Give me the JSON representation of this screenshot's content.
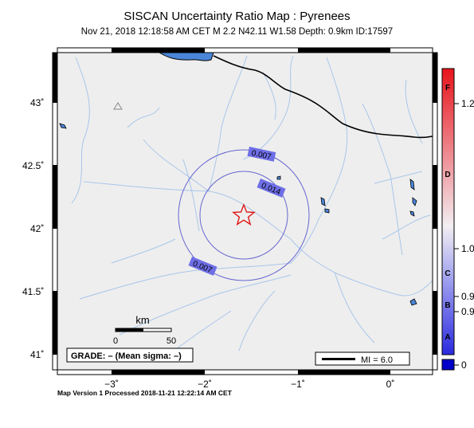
{
  "header": {
    "title": "SISCAN Uncertainty Ratio Map : Pyrenees",
    "event": "Nov 21, 2018 12:18:58 AM CET   M 2.2   N42.11 W1.58   Depth: 0.9km   ID:17597"
  },
  "map": {
    "lat_ticks": [
      {
        "label": "43˚",
        "value": 43.0
      },
      {
        "label": "42.5˚",
        "value": 42.5
      },
      {
        "label": "42˚",
        "value": 42.0
      },
      {
        "label": "41.5˚",
        "value": 41.5
      },
      {
        "label": "41˚",
        "value": 41.0
      }
    ],
    "lon_ticks": [
      {
        "label": "−3˚",
        "value": -3
      },
      {
        "label": "−2˚",
        "value": -2
      },
      {
        "label": "−1˚",
        "value": -1
      },
      {
        "label": "0˚",
        "value": 0
      }
    ],
    "contours": [
      {
        "label": "0.007"
      },
      {
        "label": "0.014"
      },
      {
        "label": "0.007"
      }
    ],
    "epicenter": {
      "lat": 42.11,
      "lon": -1.58,
      "symbol": "star-icon"
    },
    "station": {
      "symbol": "triangle-icon"
    },
    "scale": {
      "title": "km",
      "start": "0",
      "end": "50"
    },
    "grade_box": "GRADE: – (Mean sigma: –)",
    "mi_legend": "MI = 6.0"
  },
  "colorbar": {
    "grades": [
      "F",
      "D",
      "C",
      "B",
      "A"
    ],
    "ticks": [
      "1.2",
      "1.0",
      "0.9",
      "0.9",
      "0"
    ],
    "colors": {
      "top": "#e8141c",
      "mid": "#f2eef2",
      "bottom": "#2a2ae0",
      "swatch": "#0000c8"
    }
  },
  "footer": "Map Version 1 Processed 2018-11-21 12:22:14 AM CET"
}
